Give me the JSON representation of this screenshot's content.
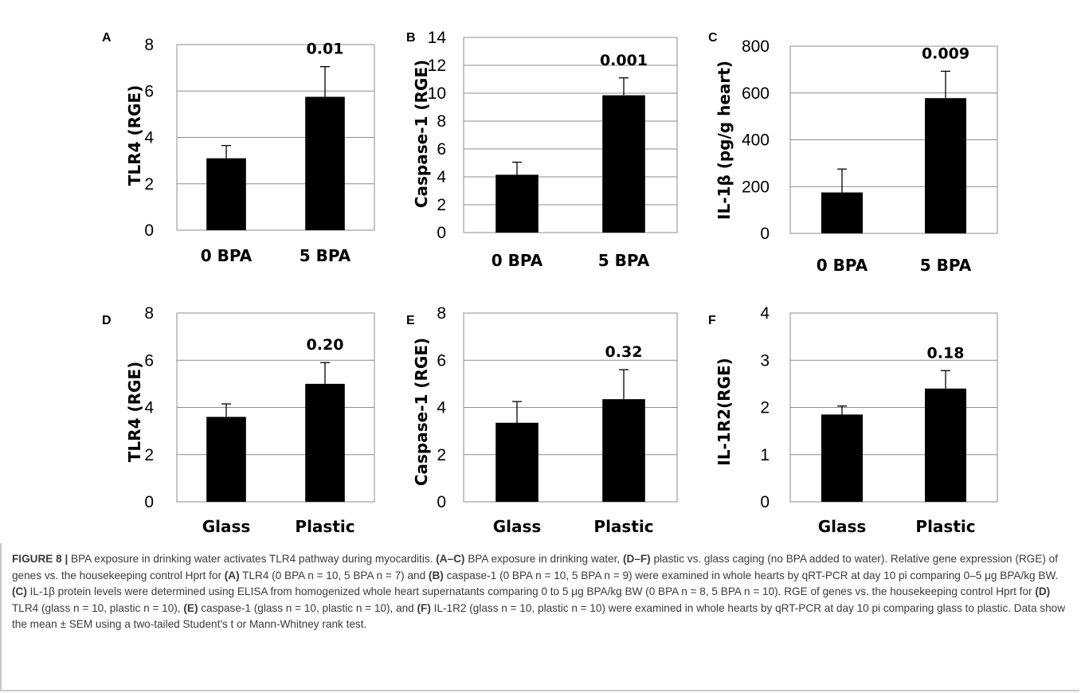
{
  "chart_data": [
    {
      "panel": "A",
      "type": "bar",
      "ylabel": "TLR4 (RGE)",
      "categories": [
        "0 BPA",
        "5 BPA"
      ],
      "values": [
        3.1,
        5.75
      ],
      "errors": [
        0.55,
        1.3
      ],
      "ylim": [
        0,
        8
      ],
      "ticks": [
        0,
        2,
        4,
        6,
        8
      ],
      "annotation": "0.01",
      "grid": true
    },
    {
      "panel": "B",
      "type": "bar",
      "ylabel": "Caspase-1 (RGE)",
      "categories": [
        "0 BPA",
        "5 BPA"
      ],
      "values": [
        4.15,
        9.85
      ],
      "errors": [
        0.9,
        1.25
      ],
      "ylim": [
        0,
        14
      ],
      "ticks": [
        0,
        2,
        4,
        6,
        8,
        10,
        12,
        14
      ],
      "annotation": "0.001",
      "grid": true
    },
    {
      "panel": "C",
      "type": "bar",
      "ylabel": "IL-1β (pg/g heart)",
      "categories": [
        "0 BPA",
        "5 BPA"
      ],
      "values": [
        175,
        578
      ],
      "errors": [
        100,
        115
      ],
      "ylim": [
        0,
        800
      ],
      "ticks": [
        0,
        200,
        400,
        600,
        800
      ],
      "annotation": "0.009",
      "grid": true
    },
    {
      "panel": "D",
      "type": "bar",
      "ylabel": "TLR4 (RGE)",
      "categories": [
        "Glass",
        "Plastic"
      ],
      "values": [
        3.6,
        5.0
      ],
      "errors": [
        0.55,
        0.9
      ],
      "ylim": [
        0,
        8
      ],
      "ticks": [
        0,
        2,
        4,
        6,
        8
      ],
      "annotation": "0.20",
      "grid": true
    },
    {
      "panel": "E",
      "type": "bar",
      "ylabel": "Caspase-1 (RGE)",
      "categories": [
        "Glass",
        "Plastic"
      ],
      "values": [
        3.35,
        4.35
      ],
      "errors": [
        0.9,
        1.25
      ],
      "ylim": [
        0,
        8
      ],
      "ticks": [
        0,
        2,
        4,
        6,
        8
      ],
      "annotation": "0.32",
      "grid": true
    },
    {
      "panel": "F",
      "type": "bar",
      "ylabel": "IL-1R2(RGE)",
      "categories": [
        "Glass",
        "Plastic"
      ],
      "values": [
        1.85,
        2.4
      ],
      "errors": [
        0.18,
        0.38
      ],
      "ylim": [
        0,
        4
      ],
      "ticks": [
        0,
        1,
        2,
        3,
        4
      ],
      "annotation": "0.18",
      "grid": true
    }
  ],
  "caption": {
    "label": "FIGURE 8 |",
    "title": " BPA exposure in drinking water activates TLR4 pathway during myocarditis. ",
    "r1": "(A–C)",
    "t1": " BPA exposure in drinking water, ",
    "r2": "(D–F)",
    "t2": " plastic vs. glass caging (no BPA added to water). Relative gene expression (RGE) of genes vs. the housekeeping control Hprt for ",
    "r3": "(A)",
    "t3": " TLR4 (0 BPA n = 10, 5 BPA n = 7) and ",
    "r4": "(B)",
    "t4": " caspase-1 (0 BPA n = 10, 5 BPA n = 9) were examined in whole hearts by qRT-PCR at day 10 pi comparing 0–5 μg BPA/kg BW. ",
    "r5": "(C)",
    "t5": " IL-1β protein levels were determined using ELISA from homogenized whole heart supernatants comparing 0 to 5 μg BPA/kg BW (0 BPA n = 8, 5 BPA n = 10). RGE of genes vs. the housekeeping control Hprt for ",
    "r6": "(D)",
    "t6": " TLR4 (glass n = 10, plastic n = 10), ",
    "r7": "(E)",
    "t7": " caspase-1 (glass n = 10, plastic n = 10), and ",
    "r8": "(F)",
    "t8": " IL-1R2 (glass n = 10, plastic n = 10) were examined in whole hearts by qRT-PCR at day 10 pi comparing glass to plastic. Data show the mean ± SEM using a two-tailed Student's t or Mann-Whitney rank test."
  }
}
